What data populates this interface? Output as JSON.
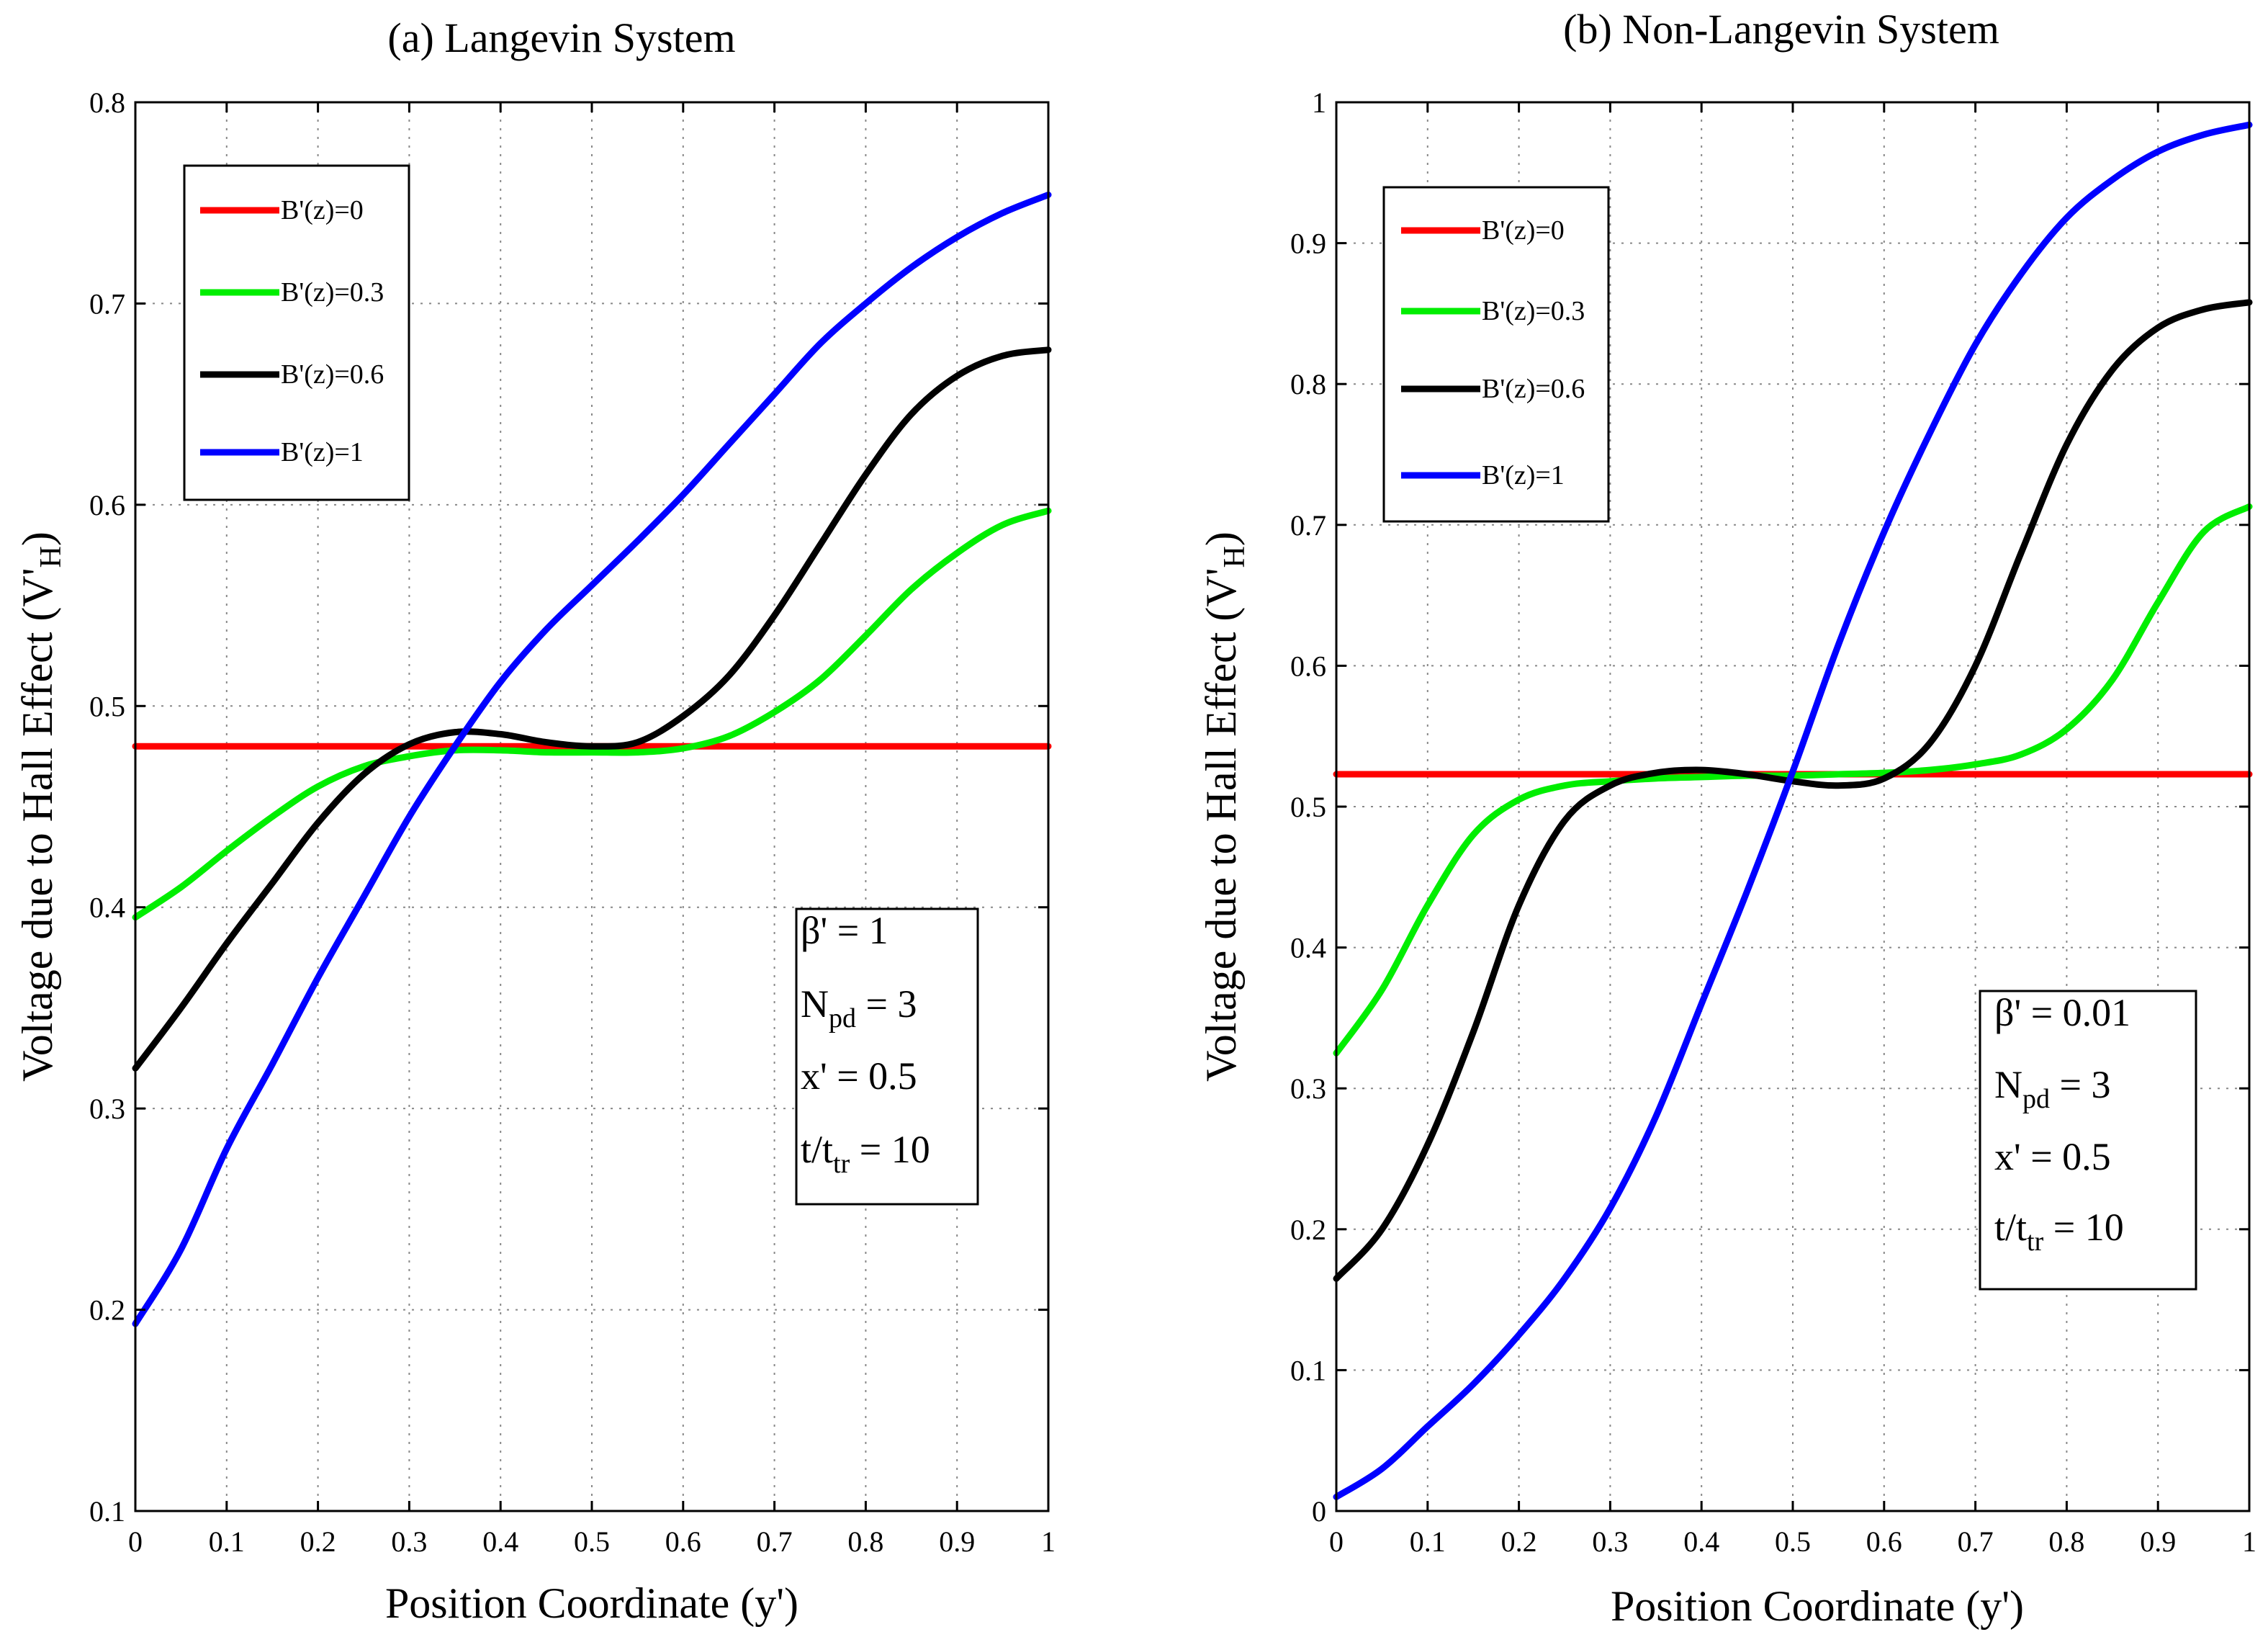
{
  "chart_data": [
    {
      "type": "line",
      "title": "(a) Langevin System",
      "xlabel": "Position Coordinate (y')",
      "ylabel": "Voltage due to Hall Effect (V'",
      "ylabel_sub": "H",
      "ylabel_end": ")",
      "xlim": [
        0,
        1
      ],
      "ylim": [
        0.1,
        0.8
      ],
      "grid": true,
      "legend_position": "top-left",
      "xticks": [
        0,
        0.1,
        0.2,
        0.3,
        0.4,
        0.5,
        0.6,
        0.7,
        0.8,
        0.9,
        1
      ],
      "xtick_labels": [
        "0",
        "0.1",
        "0.2",
        "0.3",
        "0.4",
        "0.5",
        "0.6",
        "0.7",
        "0.8",
        "0.9",
        "1"
      ],
      "yticks": [
        0.1,
        0.2,
        0.3,
        0.4,
        0.5,
        0.6,
        0.7,
        0.8
      ],
      "ytick_labels": [
        "0.1",
        "0.2",
        "0.3",
        "0.4",
        "0.5",
        "0.6",
        "0.7",
        "0.8"
      ],
      "params": [
        {
          "pre": "β' = 1",
          "sub": "",
          "post": ""
        },
        {
          "pre": "N",
          "sub": "pd",
          "post": " = 3"
        },
        {
          "pre": "x' = 0.5",
          "sub": "",
          "post": ""
        },
        {
          "pre": "t/t",
          "sub": "tr",
          "post": " = 10"
        }
      ],
      "x": [
        0,
        0.05,
        0.1,
        0.15,
        0.2,
        0.25,
        0.3,
        0.35,
        0.4,
        0.45,
        0.5,
        0.55,
        0.6,
        0.65,
        0.7,
        0.75,
        0.8,
        0.85,
        0.9,
        0.95,
        1
      ],
      "series": [
        {
          "name": "B'(z)=0",
          "color": "#ff0000",
          "values": [
            0.48,
            0.48,
            0.48,
            0.48,
            0.48,
            0.48,
            0.48,
            0.48,
            0.48,
            0.48,
            0.48,
            0.48,
            0.48,
            0.48,
            0.48,
            0.48,
            0.48,
            0.48,
            0.48,
            0.48,
            0.48
          ]
        },
        {
          "name": "B'(z)=0.3",
          "color": "#00ee00",
          "values": [
            0.395,
            0.41,
            0.428,
            0.445,
            0.46,
            0.47,
            0.475,
            0.478,
            0.478,
            0.477,
            0.477,
            0.477,
            0.479,
            0.485,
            0.497,
            0.513,
            0.535,
            0.558,
            0.576,
            0.59,
            0.597
          ]
        },
        {
          "name": "B'(z)=0.6",
          "color": "#000000",
          "values": [
            0.32,
            0.35,
            0.382,
            0.412,
            0.442,
            0.466,
            0.481,
            0.487,
            0.486,
            0.482,
            0.48,
            0.482,
            0.495,
            0.515,
            0.545,
            0.58,
            0.615,
            0.645,
            0.664,
            0.674,
            0.677
          ]
        },
        {
          "name": "B'(z)=1",
          "color": "#0000ff",
          "values": [
            0.193,
            0.23,
            0.28,
            0.322,
            0.365,
            0.405,
            0.445,
            0.48,
            0.512,
            0.538,
            0.56,
            0.582,
            0.605,
            0.63,
            0.655,
            0.68,
            0.7,
            0.718,
            0.733,
            0.745,
            0.754
          ]
        }
      ]
    },
    {
      "type": "line",
      "title": "(b) Non-Langevin System",
      "xlabel": "Position Coordinate (y')",
      "ylabel": "Voltage due to Hall Effect (V'",
      "ylabel_sub": "H",
      "ylabel_end": ")",
      "xlim": [
        0,
        1
      ],
      "ylim": [
        0,
        1
      ],
      "grid": true,
      "legend_position": "top-left",
      "xticks": [
        0,
        0.1,
        0.2,
        0.3,
        0.4,
        0.5,
        0.6,
        0.7,
        0.8,
        0.9,
        1
      ],
      "xtick_labels": [
        "0",
        "0.1",
        "0.2",
        "0.3",
        "0.4",
        "0.5",
        "0.6",
        "0.7",
        "0.8",
        "0.9",
        "1"
      ],
      "yticks": [
        0,
        0.1,
        0.2,
        0.3,
        0.4,
        0.5,
        0.6,
        0.7,
        0.8,
        0.9,
        1
      ],
      "ytick_labels": [
        "0",
        "0.1",
        "0.2",
        "0.3",
        "0.4",
        "0.5",
        "0.6",
        "0.7",
        "0.8",
        "0.9",
        "1"
      ],
      "params": [
        {
          "pre": "β' = 0.01",
          "sub": "",
          "post": ""
        },
        {
          "pre": "N",
          "sub": "pd",
          "post": " = 3"
        },
        {
          "pre": "x' = 0.5",
          "sub": "",
          "post": ""
        },
        {
          "pre": "t/t",
          "sub": "tr",
          "post": " = 10"
        }
      ],
      "x": [
        0,
        0.05,
        0.1,
        0.15,
        0.2,
        0.25,
        0.3,
        0.35,
        0.4,
        0.45,
        0.5,
        0.55,
        0.6,
        0.65,
        0.7,
        0.75,
        0.8,
        0.85,
        0.9,
        0.95,
        1
      ],
      "series": [
        {
          "name": "B'(z)=0",
          "color": "#ff0000",
          "values": [
            0.523,
            0.523,
            0.523,
            0.523,
            0.523,
            0.523,
            0.523,
            0.523,
            0.523,
            0.523,
            0.523,
            0.523,
            0.523,
            0.523,
            0.523,
            0.523,
            0.523,
            0.523,
            0.523,
            0.523,
            0.523
          ]
        },
        {
          "name": "B'(z)=0.3",
          "color": "#00ee00",
          "values": [
            0.325,
            0.37,
            0.43,
            0.48,
            0.505,
            0.515,
            0.518,
            0.52,
            0.521,
            0.522,
            0.522,
            0.523,
            0.524,
            0.526,
            0.53,
            0.537,
            0.555,
            0.59,
            0.645,
            0.695,
            0.713
          ]
        },
        {
          "name": "B'(z)=0.6",
          "color": "#000000",
          "values": [
            0.165,
            0.2,
            0.26,
            0.34,
            0.43,
            0.49,
            0.515,
            0.524,
            0.526,
            0.523,
            0.518,
            0.515,
            0.52,
            0.545,
            0.6,
            0.68,
            0.757,
            0.81,
            0.84,
            0.853,
            0.858
          ]
        },
        {
          "name": "B'(z)=1",
          "color": "#0000ff",
          "values": [
            0.01,
            0.03,
            0.06,
            0.09,
            0.125,
            0.165,
            0.215,
            0.28,
            0.36,
            0.44,
            0.525,
            0.615,
            0.695,
            0.765,
            0.828,
            0.878,
            0.918,
            0.945,
            0.965,
            0.977,
            0.984
          ]
        }
      ]
    }
  ]
}
